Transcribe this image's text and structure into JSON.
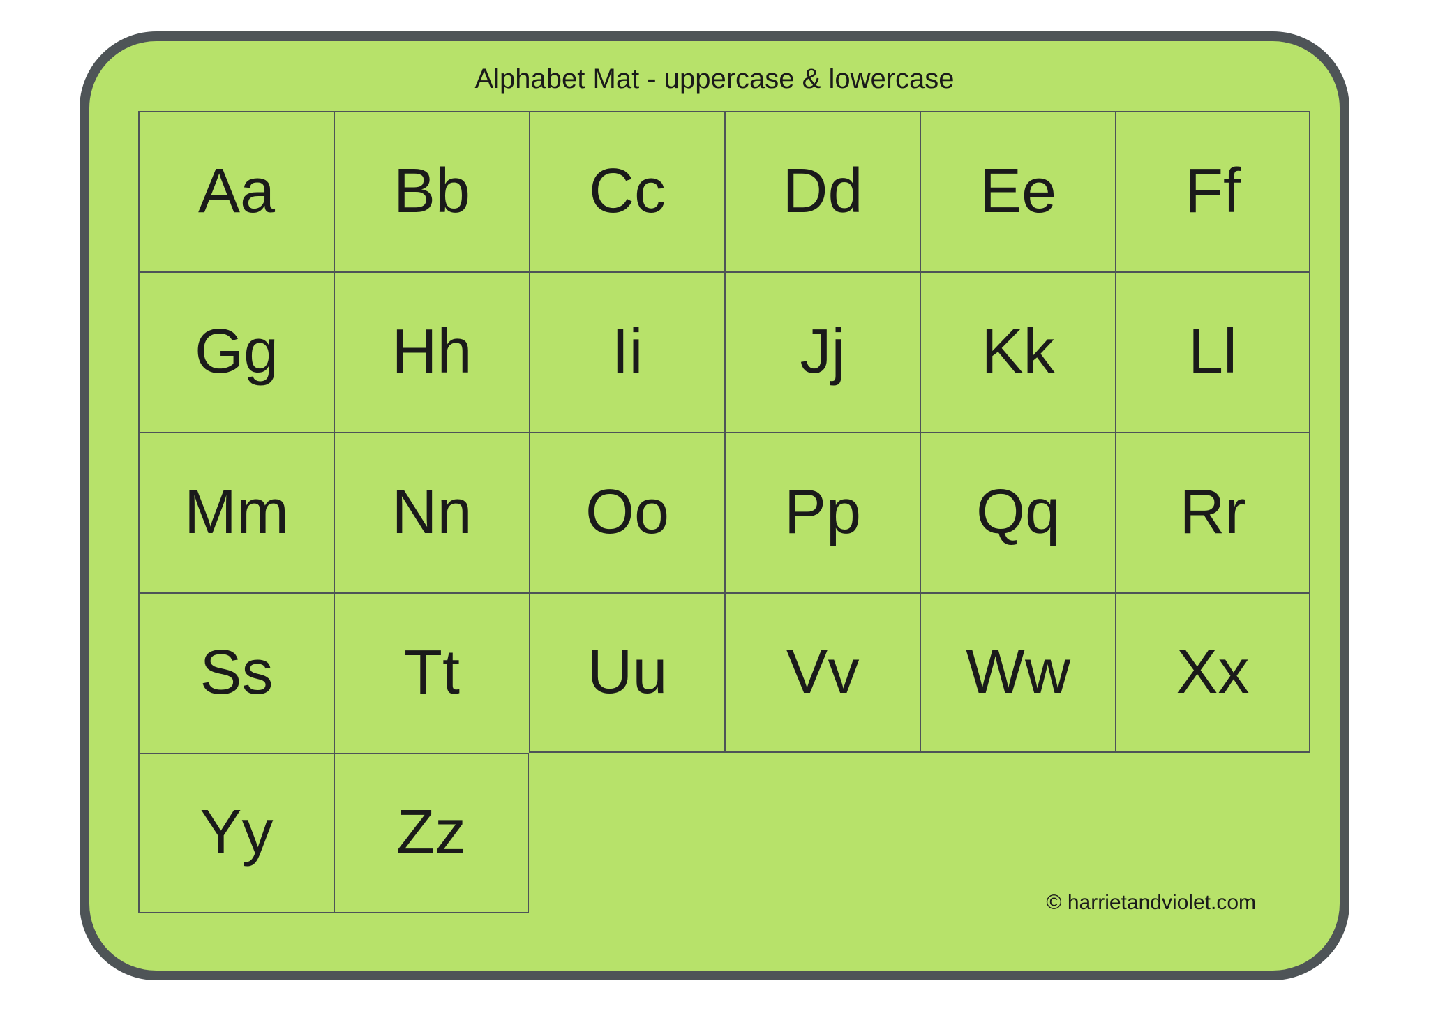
{
  "mat": {
    "title": "Alphabet Mat - uppercase & lowercase",
    "title_fontsize": 40,
    "title_color": "#1a1a1a",
    "background_color": "#b7e26a",
    "border_color": "#4e5457",
    "border_width": 14,
    "border_radius": 110,
    "cell_border_color": "#4e5457",
    "cell_border_width": 2,
    "letter_fontsize": 90,
    "letter_color": "#1a1a1a",
    "columns": 6,
    "rows_data": [
      [
        "Aa",
        "Bb",
        "Cc",
        "Dd",
        "Ee",
        "Ff"
      ],
      [
        "Gg",
        "Hh",
        "Ii",
        "Jj",
        "Kk",
        "Ll"
      ],
      [
        "Mm",
        "Nn",
        "Oo",
        "Pp",
        "Qq",
        "Rr"
      ],
      [
        "Ss",
        "Tt",
        "Uu",
        "Vv",
        "Ww",
        "Xx"
      ],
      [
        "Yy",
        "Zz"
      ]
    ],
    "credit": "© harrietandviolet.com",
    "credit_fontsize": 30,
    "credit_color": "#1a1a1a"
  }
}
